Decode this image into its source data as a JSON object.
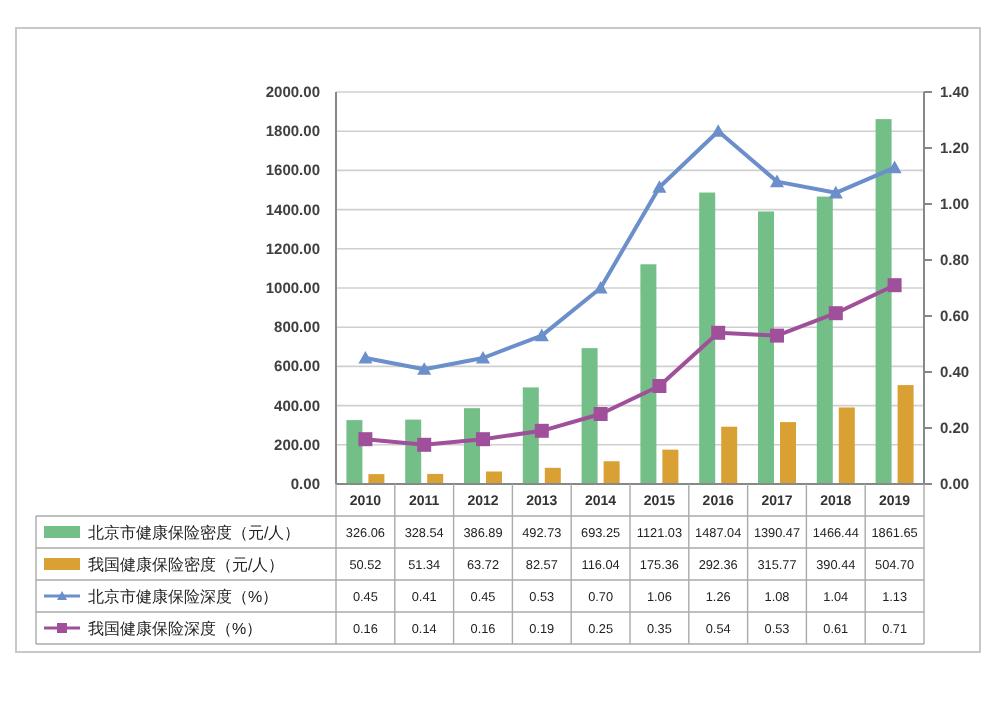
{
  "chart_data": {
    "type": "bar",
    "categories": [
      "2010",
      "2011",
      "2012",
      "2013",
      "2014",
      "2015",
      "2016",
      "2017",
      "2018",
      "2019"
    ],
    "ylim": [
      0,
      2000
    ],
    "yticks": [
      {
        "value": 0,
        "label": "0.00"
      },
      {
        "value": 200,
        "label": "200.00"
      },
      {
        "value": 400,
        "label": "400.00"
      },
      {
        "value": 600,
        "label": "600.00"
      },
      {
        "value": 800,
        "label": "800.00"
      },
      {
        "value": 1000,
        "label": "1000.00"
      },
      {
        "value": 1200,
        "label": "1200.00"
      },
      {
        "value": 1400,
        "label": "1400.00"
      },
      {
        "value": 1600,
        "label": "1600.00"
      },
      {
        "value": 1800,
        "label": "1800.00"
      },
      {
        "value": 2000,
        "label": "2000.00"
      }
    ],
    "y2lim": [
      0,
      1.4
    ],
    "y2ticks": [
      {
        "value": 0,
        "label": "0.00"
      },
      {
        "value": 0.2,
        "label": "0.20"
      },
      {
        "value": 0.4,
        "label": "0.40"
      },
      {
        "value": 0.6,
        "label": "0.60"
      },
      {
        "value": 0.8,
        "label": "0.80"
      },
      {
        "value": 1.0,
        "label": "1.00"
      },
      {
        "value": 1.2,
        "label": "1.20"
      },
      {
        "value": 1.4,
        "label": "1.40"
      }
    ],
    "grid": "y",
    "legend": "bottom",
    "series": [
      {
        "name": "北京市健康保险密度（元/人）",
        "color": "#74bf88",
        "values": [
          326.06,
          328.54,
          386.89,
          492.73,
          693.25,
          1121.03,
          1487.04,
          1390.47,
          1466.44,
          1861.65
        ],
        "value_labels": [
          "326.06",
          "328.54",
          "386.89",
          "492.73",
          "693.25",
          "1121.03",
          "1487.04",
          "1390.47",
          "1466.44",
          "1861.65"
        ]
      },
      {
        "name": "我国健康保险密度（元/人）",
        "color": "#d9a034",
        "values": [
          50.52,
          51.34,
          63.72,
          82.57,
          116.04,
          175.36,
          292.36,
          315.77,
          390.44,
          504.7
        ],
        "value_labels": [
          "50.52",
          "51.34",
          "63.72",
          "82.57",
          "116.04",
          "175.36",
          "292.36",
          "315.77",
          "390.44",
          "504.70"
        ]
      },
      {
        "name": "北京市健康保险深度（%）",
        "color": "#6b8fca",
        "type": "line",
        "axis": "y2",
        "marker": "triangle",
        "values": [
          0.45,
          0.41,
          0.45,
          0.53,
          0.7,
          1.06,
          1.26,
          1.08,
          1.04,
          1.13
        ],
        "value_labels": [
          "0.45",
          "0.41",
          "0.45",
          "0.53",
          "0.70",
          "1.06",
          "1.26",
          "1.08",
          "1.04",
          "1.13"
        ]
      },
      {
        "name": "我国健康保险深度（%）",
        "color": "#a0509a",
        "type": "line",
        "axis": "y2",
        "marker": "square",
        "values": [
          0.16,
          0.14,
          0.16,
          0.19,
          0.25,
          0.35,
          0.54,
          0.53,
          0.61,
          0.71
        ],
        "value_labels": [
          "0.16",
          "0.14",
          "0.16",
          "0.19",
          "0.25",
          "0.35",
          "0.54",
          "0.53",
          "0.61",
          "0.71"
        ]
      }
    ]
  }
}
